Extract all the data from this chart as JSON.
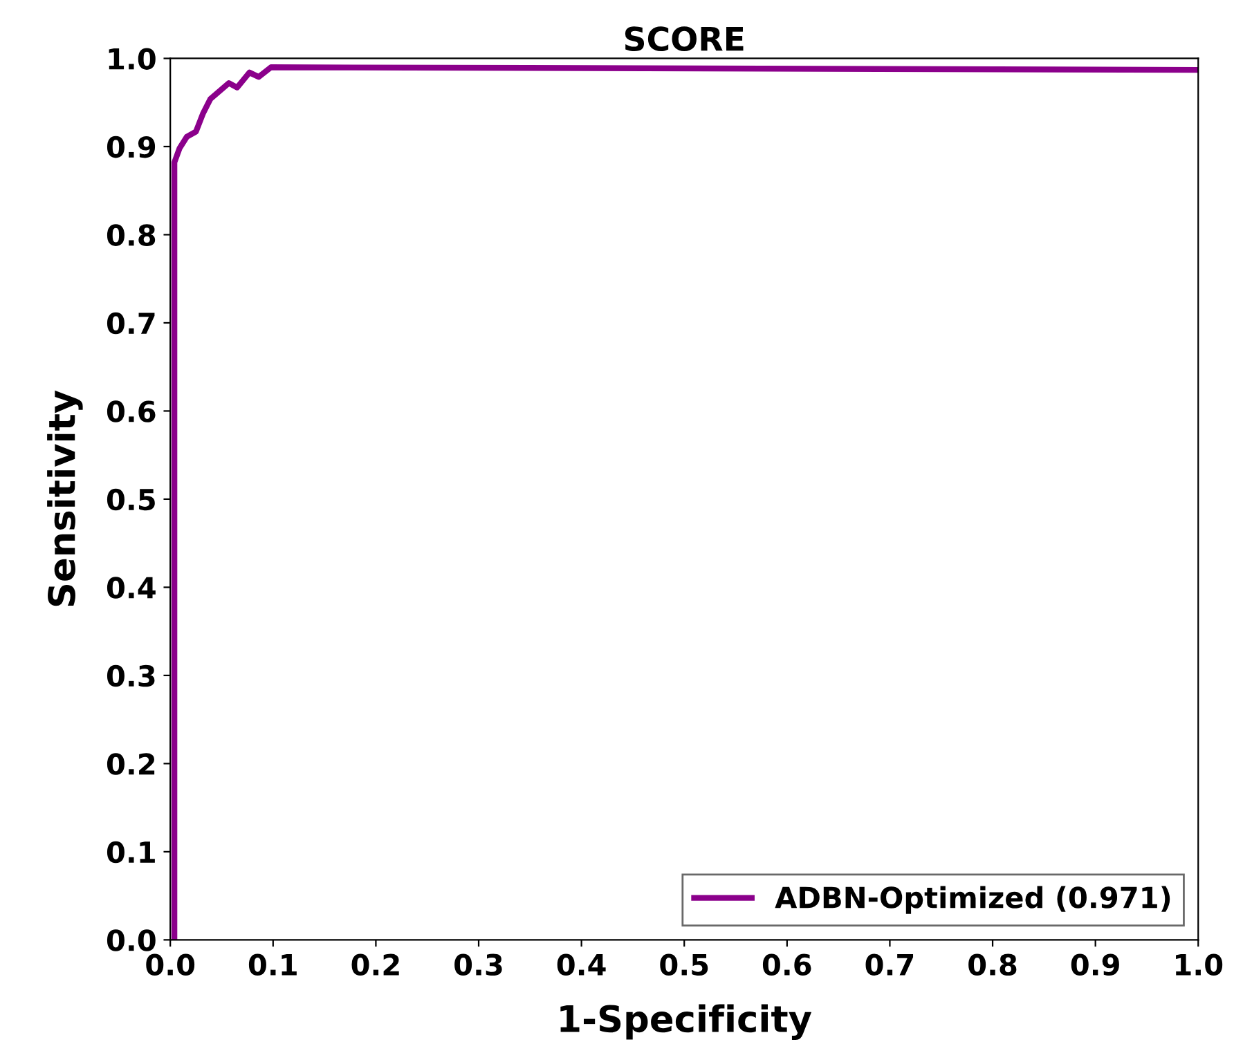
{
  "chart_data": {
    "type": "line",
    "title": "SCORE",
    "xlabel": "1-Specificity",
    "ylabel": "Sensitivity",
    "xlim": [
      0.0,
      1.0
    ],
    "ylim": [
      0.0,
      1.0
    ],
    "xticks": [
      {
        "value": 0,
        "label": "0.0"
      },
      0.1,
      0.2,
      0.3,
      0.4,
      0.5,
      0.6,
      0.7,
      0.8,
      0.9,
      {
        "value": 1,
        "label": "1.0"
      }
    ],
    "yticks": [
      {
        "value": 0,
        "label": "0.0"
      },
      0.1,
      0.2,
      0.3,
      0.4,
      0.5,
      0.6,
      0.7,
      0.8,
      0.9,
      {
        "value": 1,
        "label": "1.0"
      }
    ],
    "legend": "bottom right",
    "grid": false,
    "line_style": "solid",
    "series": [
      {
        "name": "ADBN-Optimized (0.971)",
        "color": "#8b008b",
        "x": [
          0.004,
          0.004,
          0.009,
          0.016,
          0.025,
          0.032,
          0.039,
          0.057,
          0.065,
          0.077,
          0.086,
          0.098,
          1.0
        ],
        "values": [
          0.0,
          0.882,
          0.898,
          0.911,
          0.917,
          0.938,
          0.954,
          0.972,
          0.967,
          0.984,
          0.979,
          0.99,
          0.987
        ]
      }
    ]
  }
}
